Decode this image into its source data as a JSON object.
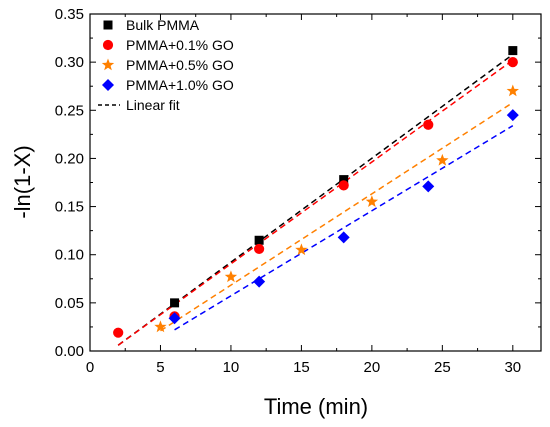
{
  "chart_data": {
    "type": "scatter",
    "xlabel": "Time (min)",
    "ylabel": "-ln(1-X)",
    "xlim": [
      0,
      32
    ],
    "ylim": [
      0,
      0.35
    ],
    "xticks": [
      "0",
      "5",
      "10",
      "15",
      "20",
      "25",
      "30"
    ],
    "yticks": [
      "0.00",
      "0.05",
      "0.10",
      "0.15",
      "0.20",
      "0.25",
      "0.30",
      "0.35"
    ],
    "grid": false,
    "legend_position": "top-left",
    "series": [
      {
        "name": "Bulk PMMA",
        "marker": "square",
        "color": "#000000",
        "x": [
          6,
          12,
          18,
          30
        ],
        "y": [
          0.05,
          0.115,
          0.178,
          0.312
        ],
        "fit": {
          "x": [
            2,
            30
          ],
          "y": [
            0.006,
            0.308
          ]
        }
      },
      {
        "name": "PMMA+0.1% GO",
        "marker": "circle",
        "color": "#ff0000",
        "x": [
          2,
          6,
          12,
          18,
          24,
          30
        ],
        "y": [
          0.019,
          0.036,
          0.106,
          0.172,
          0.235,
          0.3
        ],
        "fit": {
          "x": [
            2,
            30
          ],
          "y": [
            0.006,
            0.302
          ]
        }
      },
      {
        "name": "PMMA+0.5% GO",
        "marker": "star",
        "color": "#ff8000",
        "x": [
          5,
          10,
          15,
          20,
          25,
          30
        ],
        "y": [
          0.025,
          0.077,
          0.105,
          0.155,
          0.198,
          0.27
        ],
        "fit": {
          "x": [
            5,
            30
          ],
          "y": [
            0.021,
            0.258
          ]
        }
      },
      {
        "name": "PMMA+1.0% GO",
        "marker": "diamond",
        "color": "#0000ff",
        "x": [
          6,
          12,
          18,
          24,
          30
        ],
        "y": [
          0.034,
          0.072,
          0.118,
          0.171,
          0.245
        ],
        "fit": {
          "x": [
            6,
            30
          ],
          "y": [
            0.022,
            0.234
          ]
        }
      }
    ],
    "legend_fit_label": "Linear fit"
  }
}
